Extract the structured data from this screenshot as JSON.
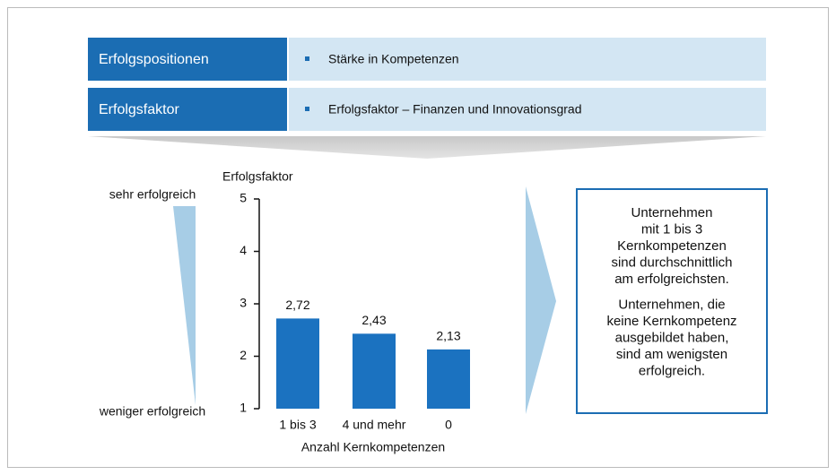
{
  "rows": [
    {
      "label": "Erfolgspositionen",
      "text": "Stärke in Kompetenzen"
    },
    {
      "label": "Erfolgsfaktor",
      "text": "Erfolgsfaktor – Finanzen und Innovationsgrad"
    }
  ],
  "scale": {
    "top": "sehr erfolgreich",
    "bottom": "weniger erfolgreich"
  },
  "chart_data": {
    "type": "bar",
    "y_label": "Erfolgsfaktor",
    "x_label": "Anzahl Kernkompetenzen",
    "categories": [
      "1 bis 3",
      "4 und mehr",
      "0"
    ],
    "values": [
      2.72,
      2.43,
      2.13
    ],
    "value_labels": [
      "2,72",
      "2,43",
      "2,13"
    ],
    "color": "#1b72c0",
    "ylim": [
      1,
      5
    ],
    "yticks": [
      1,
      2,
      3,
      4,
      5
    ]
  },
  "box": {
    "paragraphs": [
      [
        "Unternehmen",
        "mit 1 bis 3",
        "Kernkompetenzen",
        "sind durchschnittlich",
        "am erfolgreichsten."
      ],
      [
        "Unternehmen, die",
        "keine Kernkompetenz",
        "ausgebildet haben,",
        "sind am wenigsten",
        "erfolgreich."
      ]
    ]
  }
}
